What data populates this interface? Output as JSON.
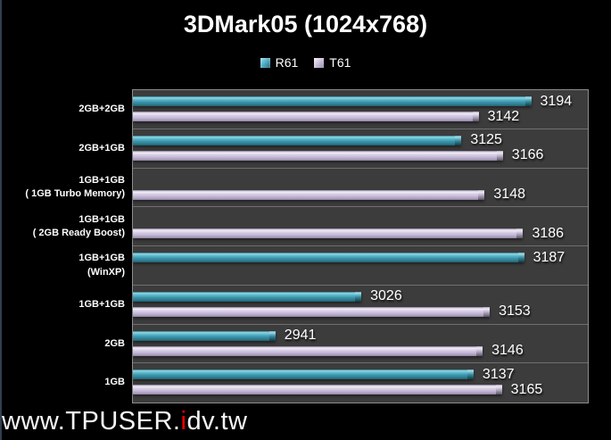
{
  "title": "3DMark05 (1024x768)",
  "watermark": {
    "prefix": "www.TPUSER.",
    "highlight": "i",
    "suffix": "dv.tw"
  },
  "colors": {
    "background": "#000000",
    "plot_background": "#3C3C3C",
    "separator_line": "#6F6F6F",
    "plot_border": "#8D8D8D",
    "r61_bar": "#3E9CB4",
    "t61_bar": "#CDC2DC",
    "text": "#FFFFFF",
    "watermark_highlight": "#FF0000"
  },
  "chart_data": {
    "type": "bar",
    "orientation": "horizontal",
    "title": "3DMark05 (1024x768)",
    "categories": [
      "2GB+2GB",
      "2GB+1GB",
      "1GB+1GB\n( 1GB Turbo Memory)",
      "1GB+1GB\n( 2GB Ready Boost)",
      "1GB+1GB\n(WinXP)",
      "1GB+1GB",
      "2GB",
      "1GB"
    ],
    "series": [
      {
        "name": "R61",
        "color": "#3E9CB4",
        "values": [
          3194,
          3125,
          null,
          null,
          3187,
          3026,
          2941,
          3137
        ]
      },
      {
        "name": "T61",
        "color": "#CDC2DC",
        "values": [
          3142,
          3166,
          3148,
          3186,
          null,
          3153,
          3146,
          3165
        ]
      }
    ],
    "value_axis": {
      "min": 2800,
      "max": 3250,
      "visible": false
    },
    "category_axis_labels_visible": true,
    "legend_position": "top",
    "grid": "category-separator-lines",
    "data_labels": true
  }
}
